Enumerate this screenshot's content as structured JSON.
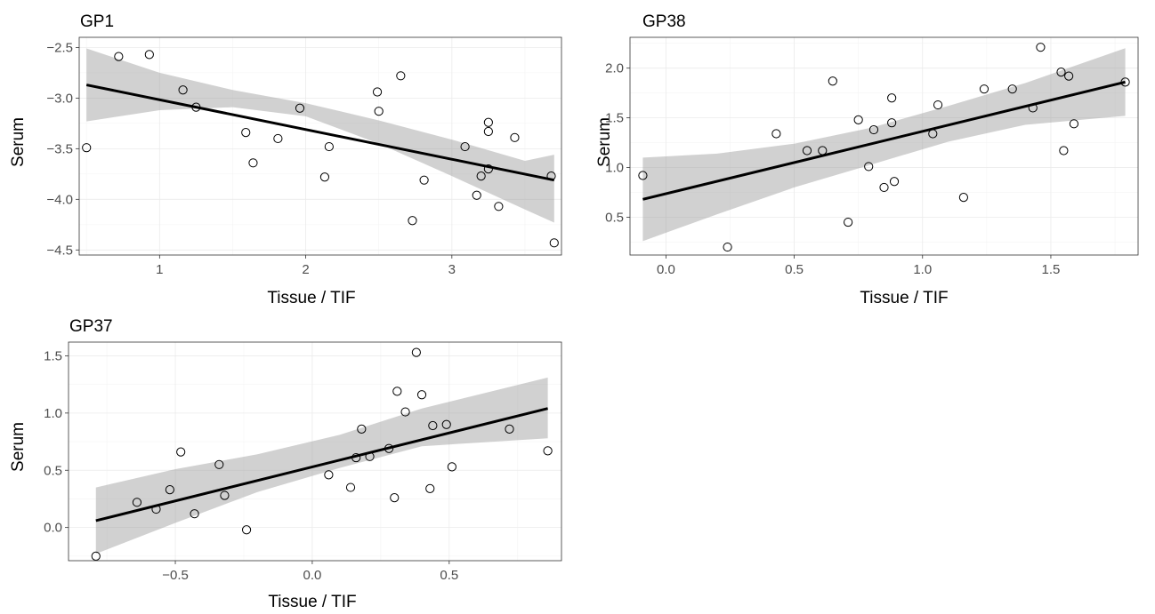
{
  "chart_data": [
    {
      "type": "scatter",
      "title": "GP1",
      "xlabel": "Tissue / TIF",
      "ylabel": "Serum",
      "xlim": [
        0.45,
        3.75
      ],
      "ylim": [
        -4.55,
        -2.4
      ],
      "xticks": [
        1,
        2,
        3
      ],
      "xtick_labels": [
        "1",
        "2",
        "3"
      ],
      "yticks": [
        -4.5,
        -4.0,
        -3.5,
        -3.0,
        -2.5
      ],
      "ytick_labels": [
        "-4.5",
        "-4.0",
        "-3.5",
        "-3.0",
        "-2.5"
      ],
      "grid": true,
      "points": [
        [
          0.5,
          -3.49
        ],
        [
          0.72,
          -2.59
        ],
        [
          0.93,
          -2.57
        ],
        [
          1.16,
          -2.92
        ],
        [
          1.25,
          -3.09
        ],
        [
          1.59,
          -3.34
        ],
        [
          1.64,
          -3.64
        ],
        [
          1.81,
          -3.4
        ],
        [
          1.96,
          -3.1
        ],
        [
          2.13,
          -3.78
        ],
        [
          2.16,
          -3.48
        ],
        [
          2.49,
          -2.94
        ],
        [
          2.5,
          -3.13
        ],
        [
          2.65,
          -2.78
        ],
        [
          2.73,
          -4.21
        ],
        [
          2.81,
          -3.81
        ],
        [
          3.09,
          -3.48
        ],
        [
          3.17,
          -3.96
        ],
        [
          3.2,
          -3.77
        ],
        [
          3.25,
          -3.24
        ],
        [
          3.25,
          -3.33
        ],
        [
          3.25,
          -3.7
        ],
        [
          3.32,
          -4.07
        ],
        [
          3.43,
          -3.39
        ],
        [
          3.68,
          -3.77
        ],
        [
          3.7,
          -4.43
        ]
      ],
      "fit": {
        "x": [
          0.5,
          3.7
        ],
        "y": [
          -2.87,
          -3.81
        ]
      },
      "band": {
        "x": [
          0.5,
          1.0,
          1.5,
          2.0,
          2.5,
          3.0,
          3.5,
          3.7
        ],
        "lower": [
          -3.23,
          -3.12,
          -3.09,
          -3.18,
          -3.45,
          -3.77,
          -4.1,
          -4.23
        ],
        "upper": [
          -2.51,
          -2.75,
          -2.92,
          -3.05,
          -3.22,
          -3.41,
          -3.62,
          -3.56
        ]
      }
    },
    {
      "type": "scatter",
      "title": "GP38",
      "xlabel": "Tissue / TIF",
      "ylabel": "Serum",
      "xlim": [
        -0.14,
        1.84
      ],
      "ylim": [
        0.12,
        2.31
      ],
      "xticks": [
        0.0,
        0.5,
        1.0,
        1.5
      ],
      "xtick_labels": [
        "0.0",
        "0.5",
        "1.0",
        "1.5"
      ],
      "yticks": [
        0.5,
        1.0,
        1.5,
        2.0
      ],
      "ytick_labels": [
        "0.5",
        "1.0",
        "1.5",
        "2.0"
      ],
      "grid": true,
      "points": [
        [
          -0.09,
          0.92
        ],
        [
          0.24,
          0.2
        ],
        [
          0.43,
          1.34
        ],
        [
          0.55,
          1.17
        ],
        [
          0.61,
          1.17
        ],
        [
          0.65,
          1.87
        ],
        [
          0.71,
          0.45
        ],
        [
          0.75,
          1.48
        ],
        [
          0.79,
          1.01
        ],
        [
          0.81,
          1.38
        ],
        [
          0.85,
          0.8
        ],
        [
          0.88,
          1.7
        ],
        [
          0.88,
          1.45
        ],
        [
          0.89,
          0.86
        ],
        [
          1.04,
          1.34
        ],
        [
          1.06,
          1.63
        ],
        [
          1.16,
          0.7
        ],
        [
          1.24,
          1.79
        ],
        [
          1.35,
          1.79
        ],
        [
          1.43,
          1.6
        ],
        [
          1.46,
          2.21
        ],
        [
          1.54,
          1.96
        ],
        [
          1.55,
          1.17
        ],
        [
          1.57,
          1.92
        ],
        [
          1.59,
          1.44
        ],
        [
          1.79,
          1.86
        ]
      ],
      "fit": {
        "x": [
          -0.09,
          1.79
        ],
        "y": [
          0.68,
          1.86
        ]
      },
      "band": {
        "x": [
          -0.09,
          0.2,
          0.5,
          0.8,
          1.1,
          1.4,
          1.79
        ],
        "lower": [
          0.26,
          0.53,
          0.8,
          1.03,
          1.26,
          1.43,
          1.52
        ],
        "upper": [
          1.1,
          1.14,
          1.24,
          1.4,
          1.62,
          1.85,
          2.2
        ]
      }
    },
    {
      "type": "scatter",
      "title": "GP37",
      "xlabel": "Tissue / TIF",
      "ylabel": "Serum",
      "xlim": [
        -0.89,
        0.91
      ],
      "ylim": [
        -0.29,
        1.62
      ],
      "xticks": [
        -0.5,
        0.0,
        0.5
      ],
      "xtick_labels": [
        "-0.5",
        "0.0",
        "0.5"
      ],
      "yticks": [
        0.0,
        0.5,
        1.0,
        1.5
      ],
      "ytick_labels": [
        "0.0",
        "0.5",
        "1.0",
        "1.5"
      ],
      "grid": true,
      "points": [
        [
          -0.79,
          -0.25
        ],
        [
          -0.64,
          0.22
        ],
        [
          -0.57,
          0.16
        ],
        [
          -0.52,
          0.33
        ],
        [
          -0.48,
          0.66
        ],
        [
          -0.43,
          0.12
        ],
        [
          -0.34,
          0.55
        ],
        [
          -0.32,
          0.28
        ],
        [
          -0.24,
          -0.02
        ],
        [
          0.06,
          0.46
        ],
        [
          0.14,
          0.35
        ],
        [
          0.16,
          0.61
        ],
        [
          0.18,
          0.86
        ],
        [
          0.21,
          0.62
        ],
        [
          0.28,
          0.69
        ],
        [
          0.3,
          0.26
        ],
        [
          0.31,
          1.19
        ],
        [
          0.34,
          1.01
        ],
        [
          0.38,
          1.53
        ],
        [
          0.4,
          1.16
        ],
        [
          0.43,
          0.34
        ],
        [
          0.44,
          0.89
        ],
        [
          0.49,
          0.9
        ],
        [
          0.51,
          0.53
        ],
        [
          0.72,
          0.86
        ],
        [
          0.86,
          0.67
        ]
      ],
      "fit": {
        "x": [
          -0.79,
          0.86
        ],
        "y": [
          0.06,
          1.04
        ]
      },
      "band": {
        "x": [
          -0.79,
          -0.5,
          -0.2,
          0.1,
          0.4,
          0.86
        ],
        "lower": [
          -0.23,
          0.04,
          0.31,
          0.52,
          0.71,
          0.78
        ],
        "upper": [
          0.35,
          0.51,
          0.64,
          0.81,
          1.04,
          1.31
        ]
      }
    }
  ]
}
